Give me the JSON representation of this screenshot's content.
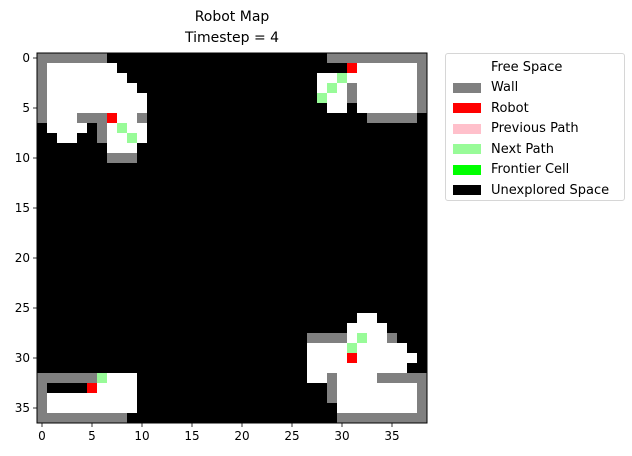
{
  "chart_data": {
    "type": "heatmap",
    "title": "Robot Map",
    "subtitle": "Timestep = 4",
    "xlabel": "",
    "ylabel": "",
    "grid": false,
    "legend_placement": "outside-right",
    "width_cells": 39,
    "height_cells": 37,
    "xlim": [
      -0.5,
      38.5
    ],
    "ylim": [
      36.5,
      -0.5
    ],
    "xticks": [
      0,
      5,
      10,
      15,
      20,
      25,
      30,
      35
    ],
    "yticks": [
      0,
      5,
      10,
      15,
      20,
      25,
      30,
      35
    ],
    "legend": [
      {
        "code": "F",
        "label": "Free Space",
        "color": "#ffffff"
      },
      {
        "code": "W",
        "label": "Wall",
        "color": "#808080"
      },
      {
        "code": "R",
        "label": "Robot",
        "color": "#ff0000"
      },
      {
        "code": "P",
        "label": "Previous Path",
        "color": "#ffc0cb"
      },
      {
        "code": "N",
        "label": "Next Path",
        "color": "#98fb98"
      },
      {
        "code": "T",
        "label": "Frontier Cell",
        "color": "#00ff00"
      },
      {
        "code": "U",
        "label": "Unexplored Space",
        "color": "#000000"
      }
    ],
    "grid_rows": [
      "WWWWWWWUUUUUUUUUUUUUUUUUUUUUUWWWWWWWWWW",
      "WFFFFFFFUUUUUUUUUUUUUUUUUUUUUUURFFFFFFW",
      "WFFFFFFFFUUUUUUUUUUUUUUUUUUUFFNFFFFFFFW",
      "WFFFFFFFFFUUUUUUUUUUUUUUUUUUFNFWFFFFFFW",
      "WFFFFFFFFFFUUUUUUUUUUUUUUUUUNFFWFFFFFFW",
      "WFFFFFFFFFFUUUUUUUUUUUUUUUUUUFFUFFFFFFW",
      "WFFFWWWRFFWUUUUUUUUUUUUUUUUUUUUUUWWWWWU",
      "UFFFFUWFNFFUUUUUUUUUUUUUUUUUUUUUUUUUUUU",
      "UUFFUUWFFNFUUUUUUUUUUUUUUUUUUUUUUUUUUUU",
      "UUUUUUUFFFUUUUUUUUUUUUUUUUUUUUUUUUUUUUU",
      "UUUUUUUWWWUUUUUUUUUUUUUUUUUUUUUUUUUUUUU",
      "UUUUUUUUUUUUUUUUUUUUUUUUUUUUUUUUUUUUUUU",
      "UUUUUUUUUUUUUUUUUUUUUUUUUUUUUUUUUUUUUUU",
      "UUUUUUUUUUUUUUUUUUUUUUUUUUUUUUUUUUUUUUU",
      "UUUUUUUUUUUUUUUUUUUUUUUUUUUUUUUUUUUUUUU",
      "UUUUUUUUUUUUUUUUUUUUUUUUUUUUUUUUUUUUUUU",
      "UUUUUUUUUUUUUUUUUUUUUUUUUUUUUUUUUUUUUUU",
      "UUUUUUUUUUUUUUUUUUUUUUUUUUUUUUUUUUUUUUU",
      "UUUUUUUUUUUUUUUUUUUUUUUUUUUUUUUUUUUUUUU",
      "UUUUUUUUUUUUUUUUUUUUUUUUUUUUUUUUUUUUUUU",
      "UUUUUUUUUUUUUUUUUUUUUUUUUUUUUUUUUUUUUUU",
      "UUUUUUUUUUUUUUUUUUUUUUUUUUUUUUUUUUUUUUU",
      "UUUUUUUUUUUUUUUUUUUUUUUUUUUUUUUUUUUUUUU",
      "UUUUUUUUUUUUUUUUUUUUUUUUUUUUUUUUUUUUUUU",
      "UUUUUUUUUUUUUUUUUUUUUUUUUUUUUUUUUUUUUUU",
      "UUUUUUUUUUUUUUUUUUUUUUUUUUUUUUUUUUUUUUU",
      "UUUUUUUUUUUUUUUUUUUUUUUUUUUUUUUUFFUUUUU",
      "UUUUUUUUUUUUUUUUUUUUUUUUUUUUUUUFFFFUUUU",
      "UUUUUUUUUUUUUUUUUUUUUUUUUUUWWWWFNFFWUUU",
      "UUUUUUUUUUUUUUUUUUUUUUUUUUUFFFFNFFFFFUU",
      "UUUUUUUUUUUUUUUUUUUUUUUUUUUFFFFRFFFFFFU",
      "UUUUUUUUUUUUUUUUUUUUUUUUUUUFFFFFFFFFFUU",
      "WWWWWWNFFFUUUUUUUUUUUUUUUUUFFWFFFFWWWWW",
      "WUUUURFFFFUUUUUUUUUUUUUUUUUUUWFFFFFFFFW",
      "WFFFFFFFFFUUUUUUUUUUUUUUUUUUUWFFFFFFFFW",
      "WFFFFFFFFFUUUUUUUUUUUUUUUUUUUUFFFFFFFFW",
      "WWWWWWWWWUUUUUUUUUUUUUUUUUUUUUWWWWWWWWW"
    ]
  }
}
